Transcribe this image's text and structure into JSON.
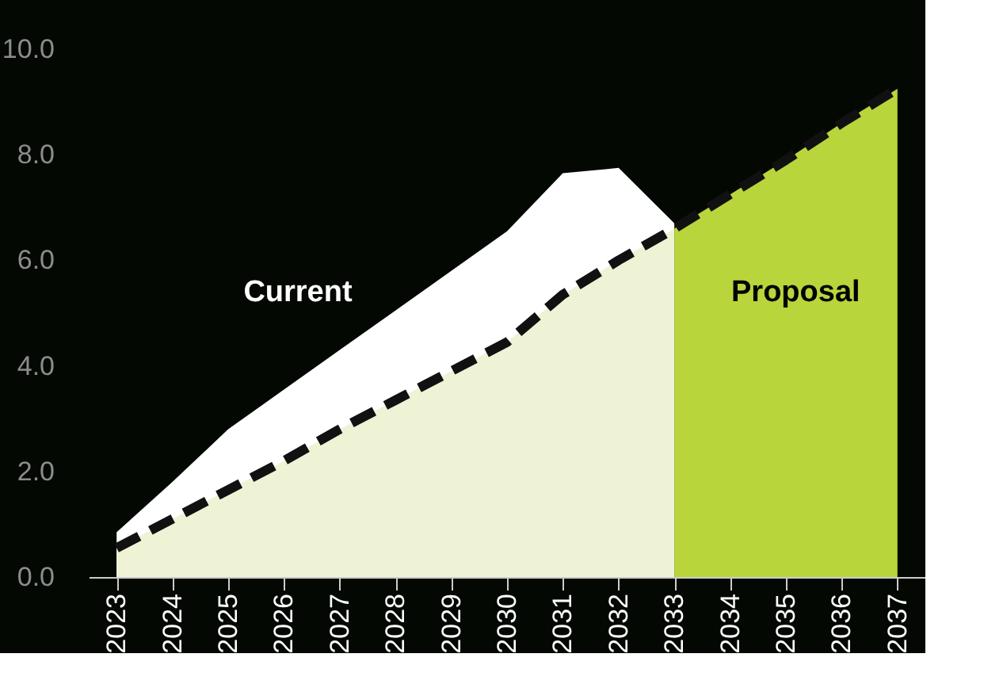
{
  "chart_data": {
    "type": "area",
    "categories": [
      "2023",
      "2024",
      "2025",
      "2026",
      "2027",
      "2028",
      "2029",
      "2030",
      "2031",
      "2032",
      "2033",
      "2034",
      "2035",
      "2036",
      "2037"
    ],
    "series": [
      {
        "color": "#ffffff",
        "values": [
          0.85,
          1.8,
          2.8,
          3.55,
          4.3,
          5.05,
          5.8,
          6.55,
          7.65,
          7.75,
          6.7,
          null,
          null,
          null,
          null
        ]
      },
      {
        "color": "#eef3d6",
        "values": [
          0.55,
          1.1,
          1.65,
          2.2,
          2.8,
          3.35,
          3.9,
          4.45,
          5.35,
          6.0,
          6.6,
          null,
          null,
          null,
          null
        ]
      },
      {
        "color": "#b9d53c",
        "values": [
          null,
          null,
          null,
          null,
          null,
          null,
          null,
          null,
          null,
          null,
          6.6,
          7.25,
          7.9,
          8.6,
          9.25
        ]
      },
      {
        "type": "line",
        "color": "#111111",
        "line_style": "dashed",
        "values": [
          0.55,
          1.1,
          1.65,
          2.2,
          2.8,
          3.35,
          3.9,
          4.45,
          5.35,
          6.0,
          6.6,
          7.25,
          7.9,
          8.6,
          9.25
        ]
      }
    ],
    "ylim": [
      0,
      10
    ],
    "yticks": [
      {
        "value": 0,
        "label": "0.0"
      },
      {
        "value": 2,
        "label": "2.0"
      },
      {
        "value": 4,
        "label": "4.0"
      },
      {
        "value": 6,
        "label": "6.0"
      },
      {
        "value": 8,
        "label": "8.0"
      },
      {
        "value": 10,
        "label": "10.0"
      }
    ],
    "grid": false,
    "annotations": [
      "Current",
      "Proposal"
    ]
  }
}
